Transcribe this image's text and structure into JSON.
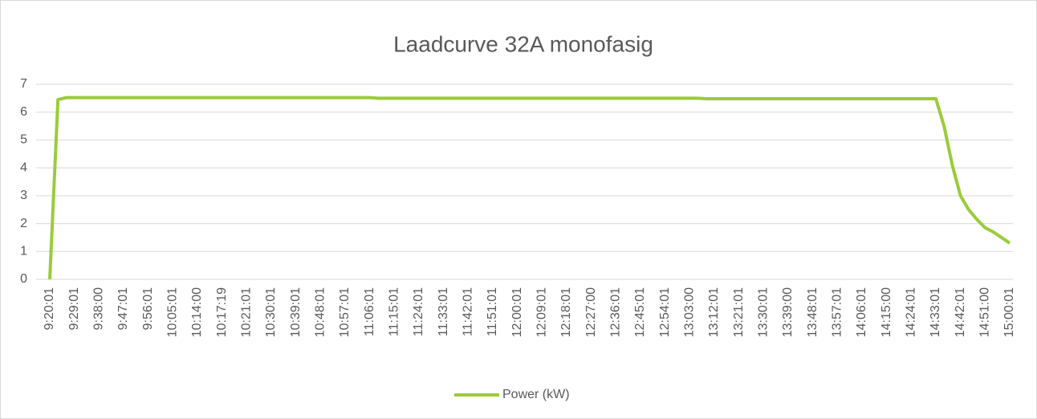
{
  "chart_data": {
    "type": "line",
    "title": "Laadcurve 32A monofasig",
    "categories": [
      "9:20:01",
      null,
      null,
      "9:29:01",
      null,
      null,
      "9:38:00",
      null,
      null,
      "9:47:01",
      null,
      null,
      "9:56:01",
      null,
      null,
      "10:05:01",
      null,
      null,
      "10:14:00",
      null,
      null,
      "10:17:19",
      null,
      null,
      "10:21:01",
      null,
      null,
      "10:30:01",
      null,
      null,
      "10:39:01",
      null,
      null,
      "10:48:01",
      null,
      null,
      "10:57:01",
      null,
      null,
      "11:06:01",
      null,
      null,
      "11:15:01",
      null,
      null,
      "11:24:01",
      null,
      null,
      "11:33:01",
      null,
      null,
      "11:42:01",
      null,
      null,
      "11:51:01",
      null,
      null,
      "12:00:01",
      null,
      null,
      "12:09:01",
      null,
      null,
      "12:18:01",
      null,
      null,
      "12:27:00",
      null,
      null,
      "12:36:01",
      null,
      null,
      "12:45:01",
      null,
      null,
      "12:54:01",
      null,
      null,
      "13:03:00",
      null,
      null,
      "13:12:01",
      null,
      null,
      "13:21:01",
      null,
      null,
      "13:30:01",
      null,
      null,
      "13:39:00",
      null,
      null,
      "13:48:01",
      null,
      null,
      "13:57:01",
      null,
      null,
      "14:06:01",
      null,
      null,
      "14:15:00",
      null,
      null,
      "14:24:01",
      null,
      null,
      "14:33:01",
      null,
      null,
      "14:42:01",
      null,
      null,
      "14:51:00",
      null,
      null,
      "15:00:01"
    ],
    "series": [
      {
        "name": "Power (kW)",
        "color": "#9bcb3b",
        "values": [
          0,
          6.45,
          6.52,
          6.52,
          6.52,
          6.52,
          6.52,
          6.52,
          6.52,
          6.52,
          6.52,
          6.52,
          6.52,
          6.52,
          6.52,
          6.52,
          6.52,
          6.52,
          6.52,
          6.52,
          6.52,
          6.52,
          6.52,
          6.52,
          6.52,
          6.52,
          6.52,
          6.52,
          6.52,
          6.52,
          6.52,
          6.52,
          6.52,
          6.52,
          6.52,
          6.52,
          6.52,
          6.52,
          6.52,
          6.52,
          6.5,
          6.5,
          6.5,
          6.5,
          6.5,
          6.5,
          6.5,
          6.5,
          6.5,
          6.5,
          6.5,
          6.5,
          6.5,
          6.5,
          6.5,
          6.5,
          6.5,
          6.5,
          6.5,
          6.5,
          6.5,
          6.5,
          6.5,
          6.5,
          6.5,
          6.5,
          6.5,
          6.5,
          6.5,
          6.5,
          6.5,
          6.5,
          6.5,
          6.5,
          6.5,
          6.5,
          6.5,
          6.5,
          6.5,
          6.5,
          6.48,
          6.48,
          6.48,
          6.48,
          6.48,
          6.48,
          6.48,
          6.48,
          6.48,
          6.48,
          6.48,
          6.48,
          6.48,
          6.48,
          6.48,
          6.48,
          6.48,
          6.48,
          6.48,
          6.48,
          6.48,
          6.48,
          6.48,
          6.48,
          6.48,
          6.48,
          6.48,
          6.48,
          6.48,
          5.5,
          4.1,
          3.0,
          2.5,
          2.15,
          1.85,
          1.7,
          1.5,
          1.3
        ]
      }
    ],
    "ylim": [
      0,
      7
    ],
    "yticks": [
      0,
      1,
      2,
      3,
      4,
      5,
      6,
      7
    ],
    "grid": true,
    "legend": "bottom"
  }
}
